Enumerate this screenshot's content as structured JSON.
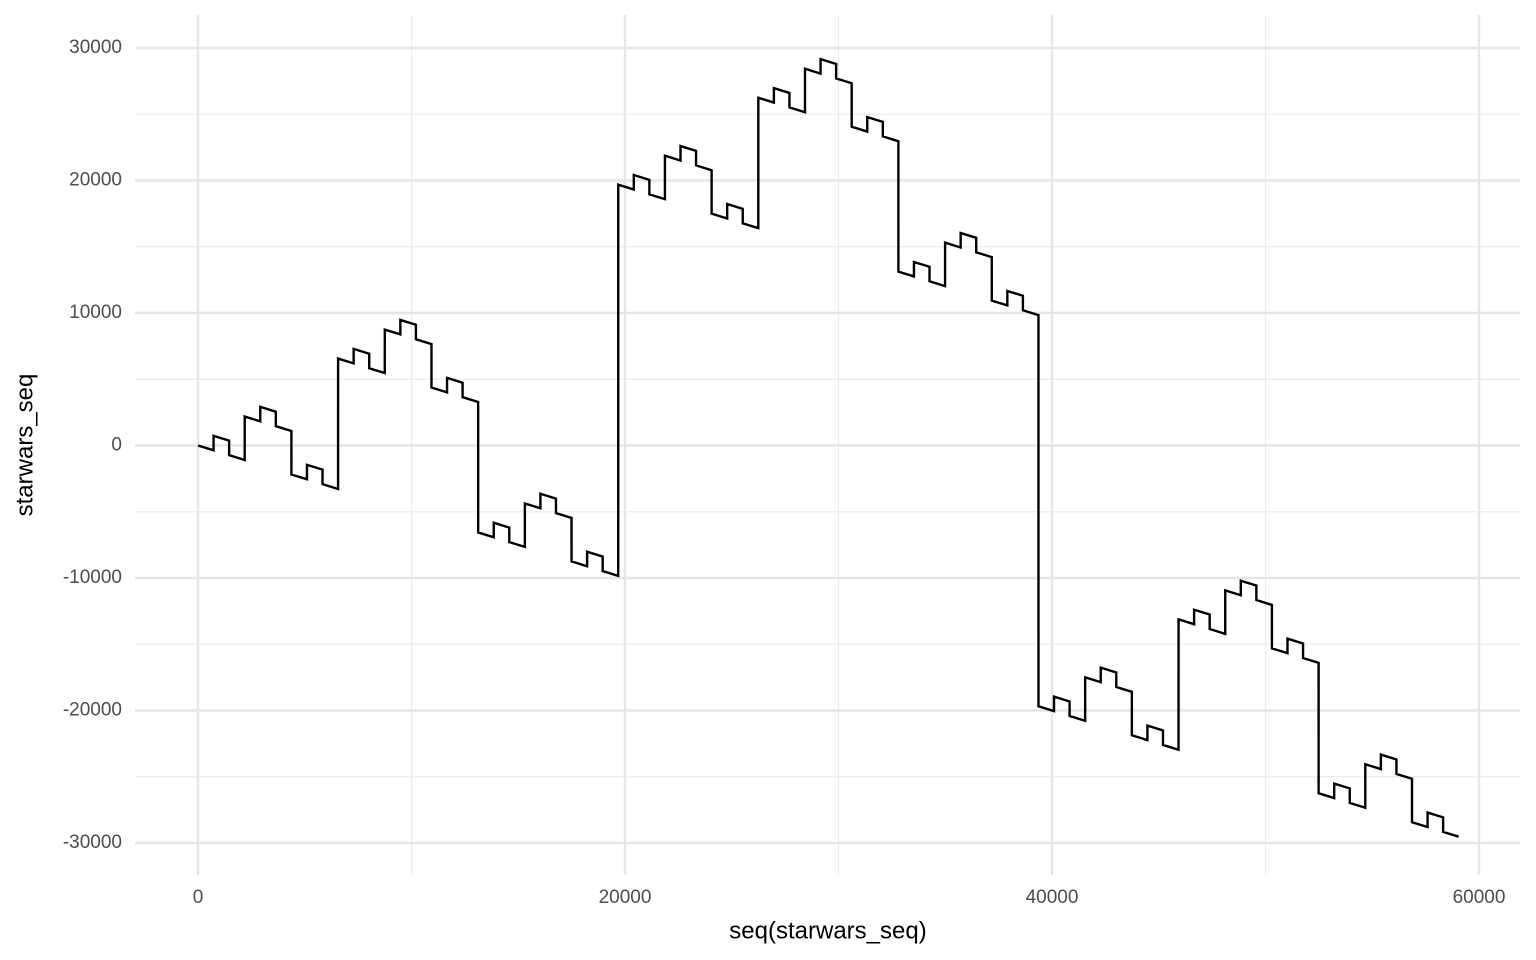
{
  "chart_data": {
    "type": "line",
    "x_label": "seq(starwars_seq)",
    "y_label": "starwars_seq",
    "xlim": [
      -2952,
      61920
    ],
    "ylim": [
      -32415,
      32490
    ],
    "xticks": [
      0,
      20000,
      40000,
      60000
    ],
    "yticks": [
      -30000,
      -20000,
      -10000,
      0,
      10000,
      20000,
      30000
    ],
    "grid": true,
    "series": [
      {
        "color": "#000000",
        "x": [
          0,
          728,
          729,
          1457,
          1458,
          2186,
          2187,
          2915,
          2916,
          3644,
          3645,
          4373,
          4374,
          5102,
          5103,
          5831,
          5832,
          6560,
          6561,
          7289,
          7290,
          8018,
          8019,
          8747,
          8748,
          9476,
          9477,
          10205,
          10206,
          10934,
          10935,
          11663,
          11664,
          12392,
          12393,
          13121,
          13122,
          13850,
          13851,
          14579,
          14580,
          15308,
          15309,
          16037,
          16038,
          16766,
          16767,
          17495,
          17496,
          18224,
          18225,
          18953,
          18954,
          19682,
          19683,
          20411,
          20412,
          21140,
          21141,
          21869,
          21870,
          22598,
          22599,
          23327,
          23328,
          24056,
          24057,
          24785,
          24786,
          25514,
          25515,
          26243,
          26244,
          26972,
          26973,
          27701,
          27702,
          28430,
          28431,
          29159,
          29160,
          29888,
          29889,
          30617,
          30618,
          31346,
          31347,
          32075,
          32076,
          32804,
          32805,
          33533,
          33534,
          34262,
          34263,
          34991,
          34992,
          35720,
          35721,
          36449,
          36450,
          37178,
          37179,
          37907,
          37908,
          38636,
          38637,
          39365,
          39366,
          40094,
          40095,
          40823,
          40824,
          41552,
          41553,
          42281,
          42282,
          43010,
          43011,
          43739,
          43740,
          44468,
          44469,
          45197,
          45198,
          45926,
          45927,
          46655,
          46656,
          47384,
          47385,
          48113,
          48114,
          48842,
          48843,
          49571,
          49572,
          50300,
          50301,
          51029,
          51030,
          51758,
          51759,
          52487,
          52488,
          53216,
          53217,
          53945,
          53946,
          54674,
          54675,
          55403,
          55404,
          56132,
          56133,
          56861,
          56862,
          57590,
          57591,
          58319,
          58320,
          59048
        ],
        "values": [
          0,
          -364,
          729,
          365,
          -729,
          -1093,
          2187,
          1823,
          2916,
          2552,
          1458,
          1094,
          -2187,
          -2551,
          -1458,
          -1822,
          -2916,
          -3280,
          6561,
          6197,
          7290,
          6926,
          5832,
          5468,
          8748,
          8384,
          9477,
          9113,
          8019,
          7655,
          4374,
          4010,
          5103,
          4739,
          3645,
          3281,
          -6561,
          -6925,
          -5832,
          -6196,
          -7290,
          -7654,
          -4374,
          -4738,
          -3645,
          -4009,
          -5103,
          -5467,
          -8748,
          -9112,
          -8019,
          -8383,
          -9477,
          -9841,
          19683,
          19319,
          20412,
          20048,
          18954,
          18590,
          21870,
          21506,
          22599,
          22235,
          21141,
          20777,
          17496,
          17132,
          18225,
          17861,
          16767,
          16403,
          26244,
          25880,
          26973,
          26609,
          25515,
          25151,
          28431,
          28067,
          29160,
          28796,
          27702,
          27338,
          24057,
          23693,
          24786,
          24422,
          23328,
          22964,
          13122,
          12758,
          13851,
          13487,
          12393,
          12029,
          15309,
          14945,
          16038,
          15674,
          14580,
          14216,
          10935,
          10571,
          11664,
          11300,
          10206,
          9842,
          -19683,
          -20047,
          -18954,
          -19318,
          -20412,
          -20776,
          -17496,
          -17860,
          -16767,
          -17131,
          -18225,
          -18589,
          -21870,
          -22234,
          -21141,
          -21505,
          -22599,
          -22963,
          -13122,
          -13486,
          -12393,
          -12757,
          -13851,
          -14215,
          -10935,
          -11299,
          -10206,
          -10570,
          -11664,
          -12028,
          -15309,
          -15673,
          -14580,
          -14944,
          -16038,
          -16402,
          -26244,
          -26608,
          -25515,
          -25879,
          -26973,
          -27337,
          -24057,
          -24421,
          -23328,
          -23692,
          -24786,
          -25150,
          -28431,
          -28795,
          -27702,
          -28066,
          -29160,
          -29524
        ]
      }
    ]
  }
}
